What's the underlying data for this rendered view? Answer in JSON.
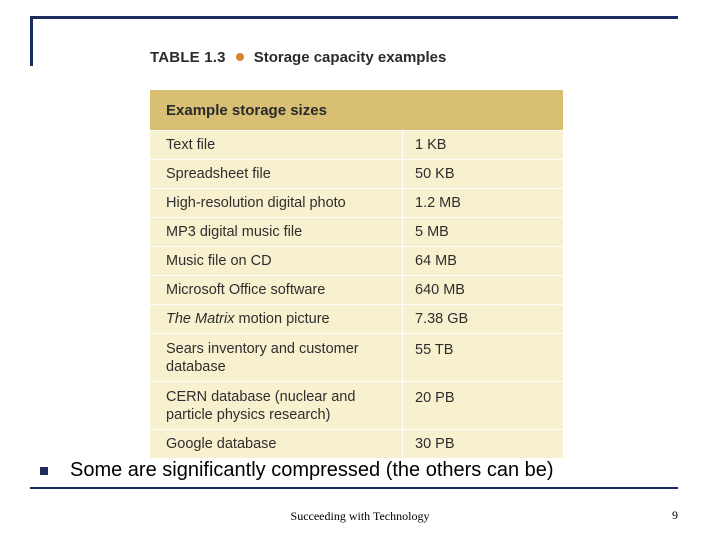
{
  "slide": {
    "table_caption_number": "TABLE 1.3",
    "table_caption_title": "Storage capacity examples",
    "table_header": "Example storage sizes",
    "rows": [
      {
        "item": "Text file",
        "size": "1 KB"
      },
      {
        "item": "Spreadsheet file",
        "size": "50 KB"
      },
      {
        "item": "High-resolution digital photo",
        "size": "1.2 MB"
      },
      {
        "item": "MP3 digital music file",
        "size": "5 MB"
      },
      {
        "item": "Music file on CD",
        "size": "64 MB"
      },
      {
        "item": "Microsoft Office software",
        "size": "640 MB"
      },
      {
        "item_italic": "The Matrix",
        "item": " motion picture",
        "size": "7.38 GB"
      },
      {
        "item": "Sears inventory and customer database",
        "size": "55 TB"
      },
      {
        "item": "CERN database (nuclear and particle physics research)",
        "size": "20 PB"
      },
      {
        "item": "Google database",
        "size": "30 PB"
      }
    ],
    "bullet_text": "Some are significantly compressed (the others can be)",
    "footer": "Succeeding with Technology",
    "page_number": "9"
  },
  "colors": {
    "frame": "#1f2a5c",
    "table_header_bg": "#d9bf74",
    "table_body_bg": "#f7f1cf",
    "caption_bullet": "#d9822b"
  }
}
